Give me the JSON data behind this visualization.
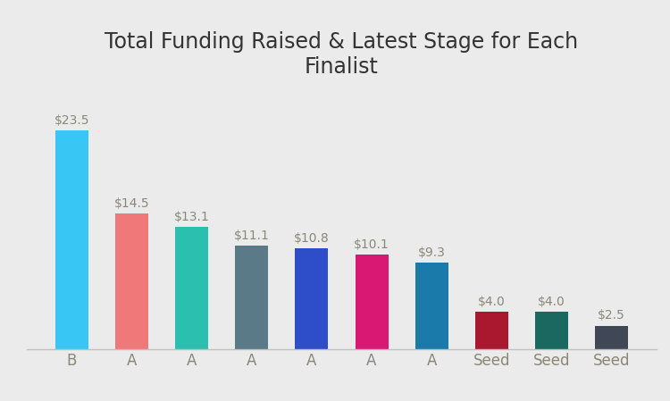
{
  "title": "Total Funding Raised & Latest Stage for Each\nFinalist",
  "categories": [
    "B",
    "A",
    "A",
    "A",
    "A",
    "A",
    "A",
    "Seed",
    "Seed",
    "Seed"
  ],
  "values": [
    23.5,
    14.5,
    13.1,
    11.1,
    10.8,
    10.1,
    9.3,
    4.0,
    4.0,
    2.5
  ],
  "labels": [
    "$23.5",
    "$14.5",
    "$13.1",
    "$11.1",
    "$10.8",
    "$10.1",
    "$9.3",
    "$4.0",
    "$4.0",
    "$2.5"
  ],
  "bar_colors": [
    "#38c6f4",
    "#f07878",
    "#2bbfaf",
    "#5a7a88",
    "#2d4ec8",
    "#d81872",
    "#1a7aaa",
    "#aa1830",
    "#1a6860",
    "#404858"
  ],
  "background_color": "#ebebeb",
  "ylim": [
    0,
    28
  ],
  "title_fontsize": 17,
  "label_color": "#888878",
  "tick_color": "#888878",
  "label_fontsize": 10,
  "tick_fontsize": 12
}
